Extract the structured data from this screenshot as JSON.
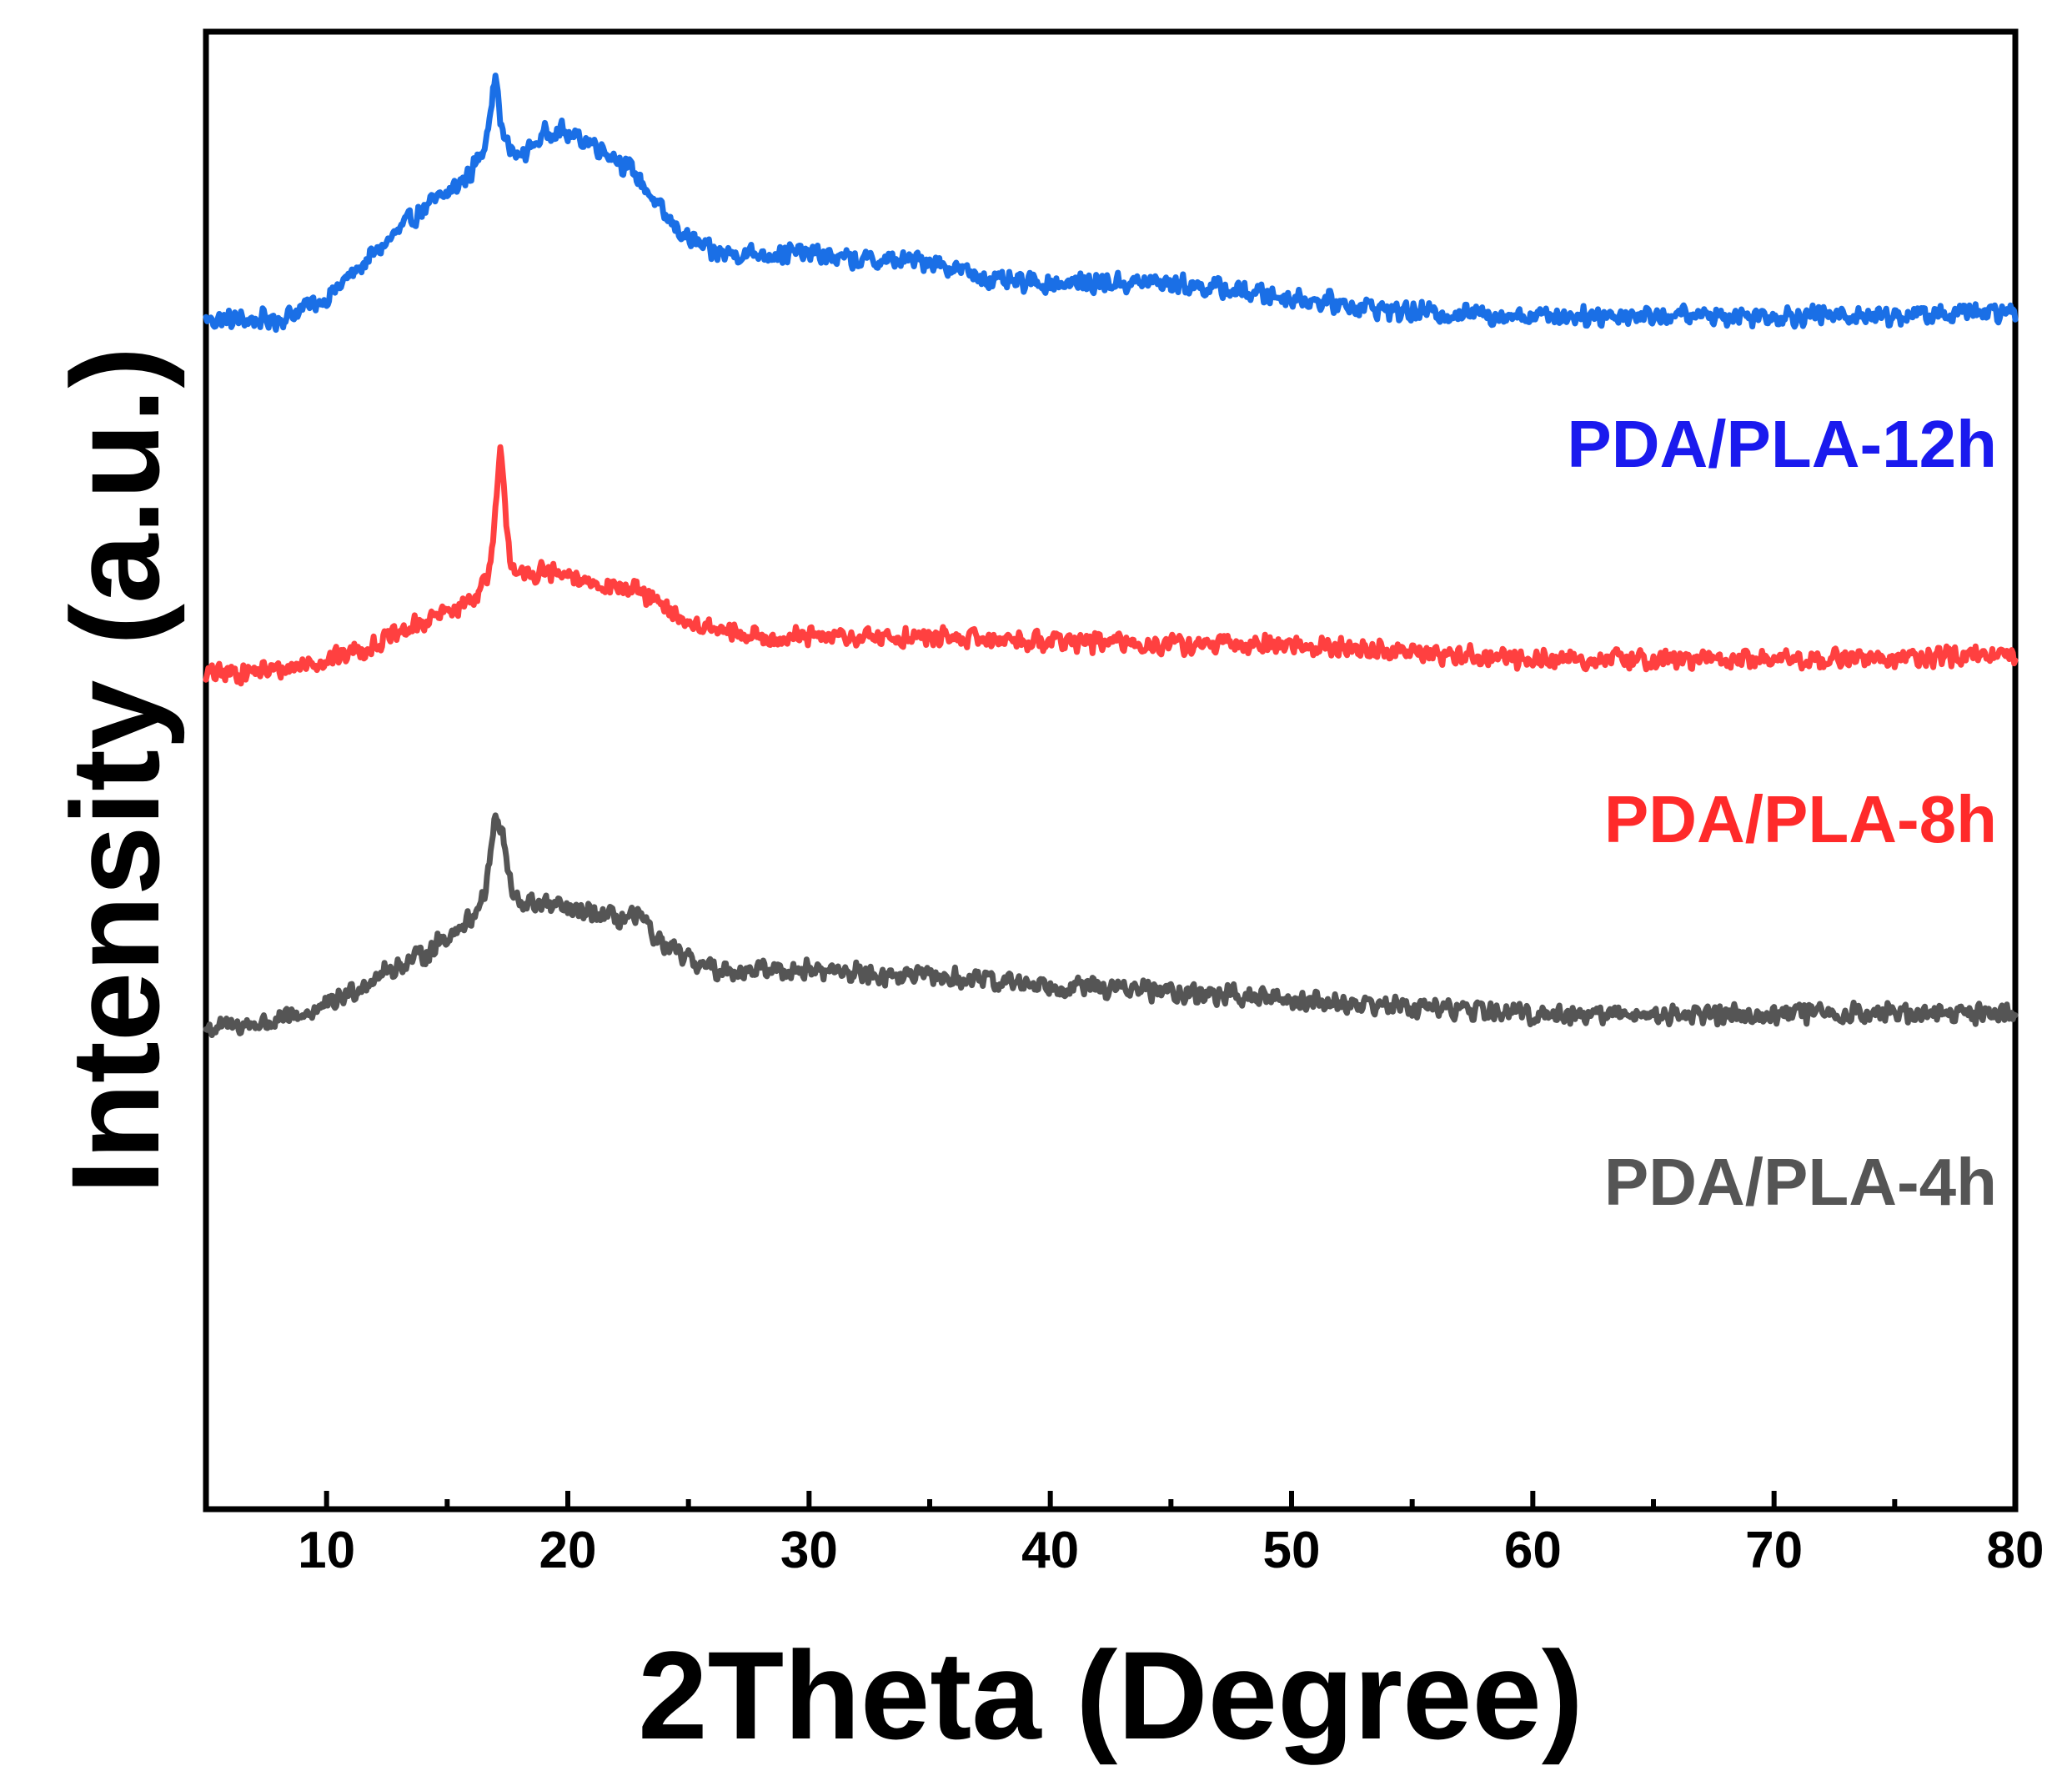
{
  "chart_data": {
    "type": "line",
    "title": "",
    "xlabel": "2Theta (Degree)",
    "ylabel": "Intensity (a.u.)",
    "xlim": [
      5,
      80
    ],
    "ylim": [
      0,
      100
    ],
    "x_ticks": [
      "10",
      "20",
      "30",
      "40",
      "50",
      "60",
      "70",
      "80"
    ],
    "y_ticks": [],
    "grid": false,
    "legend": "inline labels at right, above each curve",
    "noise_amplitude": 0.8,
    "series": [
      {
        "name": "PDA/PLA-12h",
        "color": "#1a6fe6",
        "label_color": "#1a1aee",
        "x": [
          5,
          8,
          10,
          12,
          14,
          15,
          16,
          16.5,
          17,
          17.3,
          17.6,
          18,
          19,
          19.5,
          20,
          21,
          22,
          23,
          24,
          25,
          26,
          28,
          30,
          32,
          35,
          38,
          40,
          45,
          50,
          55,
          60,
          65,
          70,
          75,
          80
        ],
        "y": [
          80.5,
          80.5,
          82,
          85,
          88,
          89,
          90.5,
          92,
          97,
          93,
          92,
          91.5,
          93,
          93.5,
          93,
          92.5,
          91.5,
          90,
          87.5,
          86,
          85,
          85,
          85,
          84.5,
          84.5,
          83,
          83,
          83,
          82,
          81,
          80.8,
          80.8,
          80.8,
          80.8,
          81
        ]
      },
      {
        "name": "PDA/PLA-8h",
        "color": "#ff4040",
        "label_color": "#ff2a2a",
        "x": [
          5,
          8,
          10,
          12,
          14,
          16,
          16.8,
          17.2,
          17.6,
          18,
          19,
          20,
          22,
          23,
          24,
          25,
          26,
          28,
          30,
          35,
          40,
          45,
          50,
          55,
          60,
          70,
          80
        ],
        "y": [
          56.5,
          56.8,
          57.5,
          58.5,
          60,
          61.5,
          63.5,
          71.5,
          64.5,
          63,
          63.5,
          63,
          62.5,
          62,
          61,
          60,
          59.5,
          59,
          59,
          59,
          58.8,
          58.5,
          58.5,
          58,
          57.5,
          57.5,
          57.7
        ]
      },
      {
        "name": "PDA/PLA-4h",
        "color": "#555555",
        "label_color": "#555555",
        "x": [
          5,
          8,
          10,
          12,
          14,
          16,
          16.6,
          17,
          17.3,
          17.7,
          18,
          19,
          20,
          22,
          23,
          24,
          26,
          28,
          30,
          35,
          40,
          45,
          50,
          55,
          60,
          65,
          70,
          75,
          80
        ],
        "y": [
          32.5,
          33,
          34,
          36,
          37.5,
          40,
          42,
          47,
          45.5,
          41.5,
          41,
          41,
          40.5,
          40,
          40,
          38,
          36.5,
          36.5,
          36.5,
          36,
          35.5,
          35,
          34.5,
          34,
          33.5,
          33.5,
          33.5,
          33.6,
          33.6
        ]
      }
    ]
  }
}
